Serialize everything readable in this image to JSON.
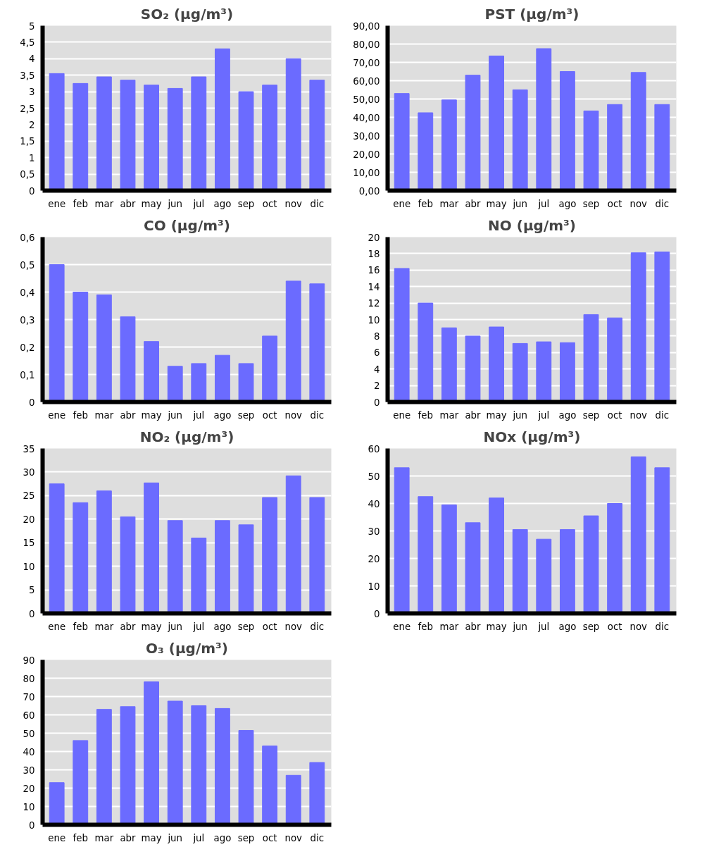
{
  "chart_data": [
    {
      "type": "bar",
      "title": "SO₂ (μg/m³)",
      "categories": [
        "ene",
        "feb",
        "mar",
        "abr",
        "may",
        "jun",
        "jul",
        "ago",
        "sep",
        "oct",
        "nov",
        "dic"
      ],
      "values": [
        3.55,
        3.25,
        3.45,
        3.35,
        3.2,
        3.1,
        3.45,
        4.3,
        3.0,
        3.2,
        4.0,
        3.35
      ],
      "color": "#6b6bff",
      "ylim": [
        0,
        5
      ],
      "yticks": [
        0,
        {
          "value": 0.5,
          "label": "0,5"
        },
        1,
        {
          "value": 1.5,
          "label": "1,5"
        },
        2,
        {
          "value": 2.5,
          "label": "2,5"
        },
        3,
        {
          "value": 3.5,
          "label": "3,5"
        },
        4,
        {
          "value": 4.5,
          "label": "4,5"
        },
        5
      ],
      "grid": "y"
    },
    {
      "type": "bar",
      "title": "PST (μg/m³)",
      "categories": [
        "ene",
        "feb",
        "mar",
        "abr",
        "may",
        "jun",
        "jul",
        "ago",
        "sep",
        "oct",
        "nov",
        "dic"
      ],
      "values": [
        53,
        42.5,
        49.5,
        63,
        73.5,
        55,
        77.5,
        65,
        43.5,
        47,
        64.5,
        47
      ],
      "color": "#6b6bff",
      "ylim": [
        0,
        90
      ],
      "yticks": [
        {
          "value": 0,
          "label": "0,00"
        },
        {
          "value": 10,
          "label": "10,00"
        },
        {
          "value": 20,
          "label": "20,00"
        },
        {
          "value": 30,
          "label": "30,00"
        },
        {
          "value": 40,
          "label": "40,00"
        },
        {
          "value": 50,
          "label": "50,00"
        },
        {
          "value": 60,
          "label": "60,00"
        },
        {
          "value": 70,
          "label": "70,00"
        },
        {
          "value": 80,
          "label": "80,00"
        },
        {
          "value": 90,
          "label": "90,00"
        }
      ],
      "grid": "y"
    },
    {
      "type": "bar",
      "title": "CO (μg/m³)",
      "categories": [
        "ene",
        "feb",
        "mar",
        "abr",
        "may",
        "jun",
        "jul",
        "ago",
        "sep",
        "oct",
        "nov",
        "dic"
      ],
      "values": [
        0.5,
        0.4,
        0.39,
        0.31,
        0.22,
        0.13,
        0.14,
        0.17,
        0.14,
        0.24,
        0.44,
        0.43
      ],
      "color": "#6b6bff",
      "ylim": [
        0,
        0.6
      ],
      "yticks": [
        0,
        {
          "value": 0.1,
          "label": "0,1"
        },
        {
          "value": 0.2,
          "label": "0,2"
        },
        {
          "value": 0.3,
          "label": "0,3"
        },
        {
          "value": 0.4,
          "label": "0,4"
        },
        {
          "value": 0.5,
          "label": "0,5"
        },
        {
          "value": 0.6,
          "label": "0,6"
        }
      ],
      "grid": "y"
    },
    {
      "type": "bar",
      "title": "NO (μg/m³)",
      "categories": [
        "ene",
        "feb",
        "mar",
        "abr",
        "may",
        "jun",
        "jul",
        "ago",
        "sep",
        "oct",
        "nov",
        "dic"
      ],
      "values": [
        16.2,
        12,
        9,
        8,
        9.1,
        7.1,
        7.3,
        7.2,
        10.6,
        10.2,
        18.1,
        18.2
      ],
      "color": "#6b6bff",
      "ylim": [
        0,
        20
      ],
      "yticks": [
        0,
        2,
        4,
        6,
        8,
        10,
        12,
        14,
        16,
        18,
        20
      ],
      "grid": "y"
    },
    {
      "type": "bar",
      "title": "NO₂ (μg/m³)",
      "categories": [
        "ene",
        "feb",
        "mar",
        "abr",
        "may",
        "jun",
        "jul",
        "ago",
        "sep",
        "oct",
        "nov",
        "dic"
      ],
      "values": [
        27.5,
        23.5,
        26,
        20.5,
        27.7,
        19.7,
        16,
        19.7,
        18.8,
        24.6,
        29.2,
        24.6
      ],
      "color": "#6b6bff",
      "ylim": [
        0,
        35
      ],
      "yticks": [
        0,
        5,
        10,
        15,
        20,
        25,
        30,
        35
      ],
      "grid": "y"
    },
    {
      "type": "bar",
      "title": "NOx (μg/m³)",
      "categories": [
        "ene",
        "feb",
        "mar",
        "abr",
        "may",
        "jun",
        "jul",
        "ago",
        "sep",
        "oct",
        "nov",
        "dic"
      ],
      "values": [
        53,
        42.5,
        39.5,
        33,
        42,
        30.5,
        27,
        30.5,
        35.5,
        40,
        57,
        53
      ],
      "color": "#6b6bff",
      "ylim": [
        0,
        60
      ],
      "yticks": [
        0,
        10,
        20,
        30,
        40,
        50,
        60
      ],
      "grid": "y"
    },
    {
      "type": "bar",
      "title": "O₃ (μg/m³)",
      "categories": [
        "ene",
        "feb",
        "mar",
        "abr",
        "may",
        "jun",
        "jul",
        "ago",
        "sep",
        "oct",
        "nov",
        "dic"
      ],
      "values": [
        23,
        46,
        63,
        64.5,
        78,
        67.5,
        65,
        63.5,
        51.5,
        43,
        27,
        34
      ],
      "color": "#6b6bff",
      "ylim": [
        0,
        90
      ],
      "yticks": [
        0,
        10,
        20,
        30,
        40,
        50,
        60,
        70,
        80,
        90
      ],
      "grid": "y"
    }
  ]
}
